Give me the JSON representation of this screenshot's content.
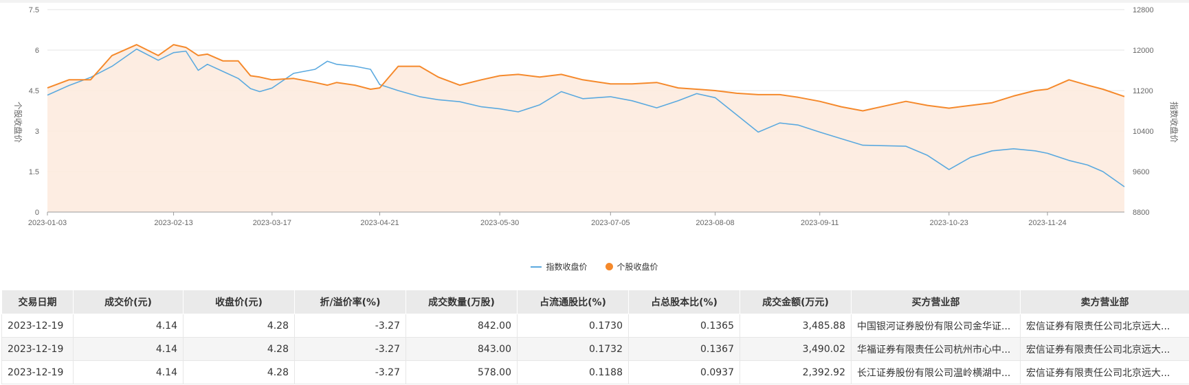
{
  "chart_data": {
    "type": "line",
    "title": "",
    "ylabel_left": "个股收盘价",
    "ylabel_right": "指数收盘价",
    "x_ticks": [
      "2023-01-03",
      "2023-02-13",
      "2023-03-17",
      "2023-04-21",
      "2023-05-30",
      "2023-07-05",
      "2023-08-08",
      "2023-09-11",
      "2023-10-23",
      "2023-11-24"
    ],
    "y_left_ticks": [
      "0",
      "1.5",
      "3",
      "4.5",
      "6",
      "7.5"
    ],
    "y_right_ticks": [
      "8800",
      "9600",
      "10400",
      "11200",
      "12000",
      "12800"
    ],
    "ylim_left": [
      0,
      7.5
    ],
    "ylim_right": [
      8800,
      12800
    ],
    "x_range": [
      "2023-01-03",
      "2023-12-19"
    ],
    "grid": true,
    "legend_position": "bottom",
    "series": [
      {
        "name": "指数收盘价",
        "axis": "right",
        "color": "#5aa9df",
        "points": [
          [
            "2023-01-03",
            11110
          ],
          [
            "2023-01-10",
            11300
          ],
          [
            "2023-01-17",
            11460
          ],
          [
            "2023-01-24",
            11680
          ],
          [
            "2023-02-01",
            12020
          ],
          [
            "2023-02-08",
            11800
          ],
          [
            "2023-02-13",
            11950
          ],
          [
            "2023-02-17",
            11980
          ],
          [
            "2023-02-21",
            11600
          ],
          [
            "2023-02-24",
            11720
          ],
          [
            "2023-03-01",
            11580
          ],
          [
            "2023-03-06",
            11440
          ],
          [
            "2023-03-10",
            11240
          ],
          [
            "2023-03-13",
            11180
          ],
          [
            "2023-03-17",
            11250
          ],
          [
            "2023-03-24",
            11540
          ],
          [
            "2023-03-31",
            11620
          ],
          [
            "2023-04-04",
            11780
          ],
          [
            "2023-04-07",
            11720
          ],
          [
            "2023-04-13",
            11680
          ],
          [
            "2023-04-18",
            11620
          ],
          [
            "2023-04-21",
            11320
          ],
          [
            "2023-04-27",
            11200
          ],
          [
            "2023-05-04",
            11080
          ],
          [
            "2023-05-10",
            11020
          ],
          [
            "2023-05-17",
            10980
          ],
          [
            "2023-05-24",
            10880
          ],
          [
            "2023-05-30",
            10840
          ],
          [
            "2023-06-05",
            10780
          ],
          [
            "2023-06-12",
            10920
          ],
          [
            "2023-06-19",
            11180
          ],
          [
            "2023-06-26",
            11040
          ],
          [
            "2023-07-05",
            11080
          ],
          [
            "2023-07-12",
            11000
          ],
          [
            "2023-07-20",
            10860
          ],
          [
            "2023-07-27",
            11000
          ],
          [
            "2023-08-02",
            11140
          ],
          [
            "2023-08-08",
            11060
          ],
          [
            "2023-08-15",
            10720
          ],
          [
            "2023-08-22",
            10380
          ],
          [
            "2023-08-29",
            10560
          ],
          [
            "2023-09-04",
            10520
          ],
          [
            "2023-09-11",
            10380
          ],
          [
            "2023-09-18",
            10250
          ],
          [
            "2023-09-25",
            10120
          ],
          [
            "2023-10-09",
            10100
          ],
          [
            "2023-10-16",
            9920
          ],
          [
            "2023-10-23",
            9640
          ],
          [
            "2023-10-30",
            9880
          ],
          [
            "2023-11-06",
            10010
          ],
          [
            "2023-11-13",
            10050
          ],
          [
            "2023-11-20",
            10010
          ],
          [
            "2023-11-24",
            9960
          ],
          [
            "2023-12-01",
            9820
          ],
          [
            "2023-12-07",
            9730
          ],
          [
            "2023-12-12",
            9600
          ],
          [
            "2023-12-19",
            9300
          ]
        ]
      },
      {
        "name": "个股收盘价",
        "axis": "left",
        "color": "#f5892b",
        "points": [
          [
            "2023-01-03",
            4.6
          ],
          [
            "2023-01-10",
            4.9
          ],
          [
            "2023-01-17",
            4.9
          ],
          [
            "2023-01-24",
            5.8
          ],
          [
            "2023-02-01",
            6.2
          ],
          [
            "2023-02-08",
            5.8
          ],
          [
            "2023-02-13",
            6.2
          ],
          [
            "2023-02-17",
            6.1
          ],
          [
            "2023-02-21",
            5.8
          ],
          [
            "2023-02-24",
            5.85
          ],
          [
            "2023-03-01",
            5.6
          ],
          [
            "2023-03-06",
            5.6
          ],
          [
            "2023-03-10",
            5.05
          ],
          [
            "2023-03-13",
            5.0
          ],
          [
            "2023-03-17",
            4.9
          ],
          [
            "2023-03-24",
            4.95
          ],
          [
            "2023-03-31",
            4.8
          ],
          [
            "2023-04-04",
            4.7
          ],
          [
            "2023-04-07",
            4.8
          ],
          [
            "2023-04-13",
            4.7
          ],
          [
            "2023-04-18",
            4.55
          ],
          [
            "2023-04-21",
            4.6
          ],
          [
            "2023-04-27",
            5.4
          ],
          [
            "2023-05-04",
            5.4
          ],
          [
            "2023-05-10",
            5.0
          ],
          [
            "2023-05-17",
            4.7
          ],
          [
            "2023-05-24",
            4.9
          ],
          [
            "2023-05-30",
            5.05
          ],
          [
            "2023-06-05",
            5.1
          ],
          [
            "2023-06-12",
            5.0
          ],
          [
            "2023-06-19",
            5.1
          ],
          [
            "2023-06-26",
            4.9
          ],
          [
            "2023-07-05",
            4.75
          ],
          [
            "2023-07-12",
            4.75
          ],
          [
            "2023-07-20",
            4.8
          ],
          [
            "2023-07-27",
            4.6
          ],
          [
            "2023-08-02",
            4.55
          ],
          [
            "2023-08-08",
            4.5
          ],
          [
            "2023-08-15",
            4.4
          ],
          [
            "2023-08-22",
            4.35
          ],
          [
            "2023-08-29",
            4.35
          ],
          [
            "2023-09-04",
            4.25
          ],
          [
            "2023-09-11",
            4.1
          ],
          [
            "2023-09-18",
            3.9
          ],
          [
            "2023-09-25",
            3.75
          ],
          [
            "2023-10-09",
            4.1
          ],
          [
            "2023-10-16",
            3.95
          ],
          [
            "2023-10-23",
            3.85
          ],
          [
            "2023-10-30",
            3.95
          ],
          [
            "2023-11-06",
            4.05
          ],
          [
            "2023-11-13",
            4.3
          ],
          [
            "2023-11-20",
            4.5
          ],
          [
            "2023-11-24",
            4.55
          ],
          [
            "2023-12-01",
            4.9
          ],
          [
            "2023-12-07",
            4.7
          ],
          [
            "2023-12-12",
            4.55
          ],
          [
            "2023-12-19",
            4.28
          ]
        ]
      }
    ]
  },
  "table": {
    "headers": [
      "交易日期",
      "成交价(元)",
      "收盘价(元)",
      "折/溢价率(%)",
      "成交数量(万股)",
      "占流通股比(%)",
      "占总股本比(%)",
      "成交金额(万元)",
      "买方营业部",
      "卖方营业部"
    ],
    "rows": [
      [
        "2023-12-19",
        "4.14",
        "4.28",
        "-3.27",
        "842.00",
        "0.1730",
        "0.1365",
        "3,485.88",
        "中国银河证券股份有限公司金华证...",
        "宏信证券有限责任公司北京远大..."
      ],
      [
        "2023-12-19",
        "4.14",
        "4.28",
        "-3.27",
        "843.00",
        "0.1732",
        "0.1367",
        "3,490.02",
        "华福证券有限责任公司杭州市心中...",
        "宏信证券有限责任公司北京远大..."
      ],
      [
        "2023-12-19",
        "4.14",
        "4.28",
        "-3.27",
        "578.00",
        "0.1188",
        "0.0937",
        "2,392.92",
        "长江证券股份有限公司温岭横湖中...",
        "宏信证券有限责任公司北京远大..."
      ]
    ]
  }
}
